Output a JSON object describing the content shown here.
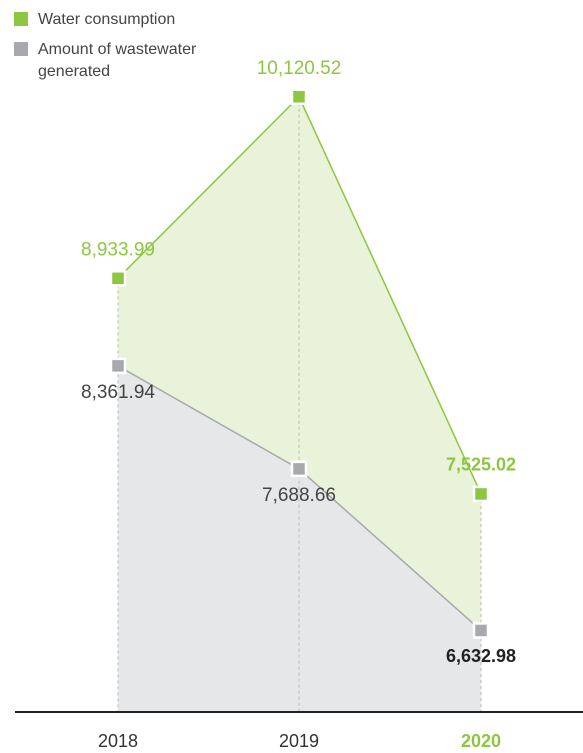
{
  "chart_data": {
    "type": "area",
    "categories": [
      "2018",
      "2019",
      "2020"
    ],
    "series": [
      {
        "name": "Water consumption",
        "color": "#8dc63f",
        "fill": "#e9f3d9",
        "values": [
          8933.99,
          10120.52,
          7525.02
        ],
        "value_labels": [
          "8,933.99",
          "10,120.52",
          "7,525.02"
        ]
      },
      {
        "name": "Amount of wastewater generated",
        "color": "#a7a9ac",
        "fill": "#e6e7e9",
        "values": [
          8361.94,
          7688.66,
          6632.98
        ],
        "value_labels": [
          "8,361.94",
          "7,688.66",
          "6,632.98"
        ]
      }
    ],
    "ylim": [
      6100,
      10400
    ]
  }
}
